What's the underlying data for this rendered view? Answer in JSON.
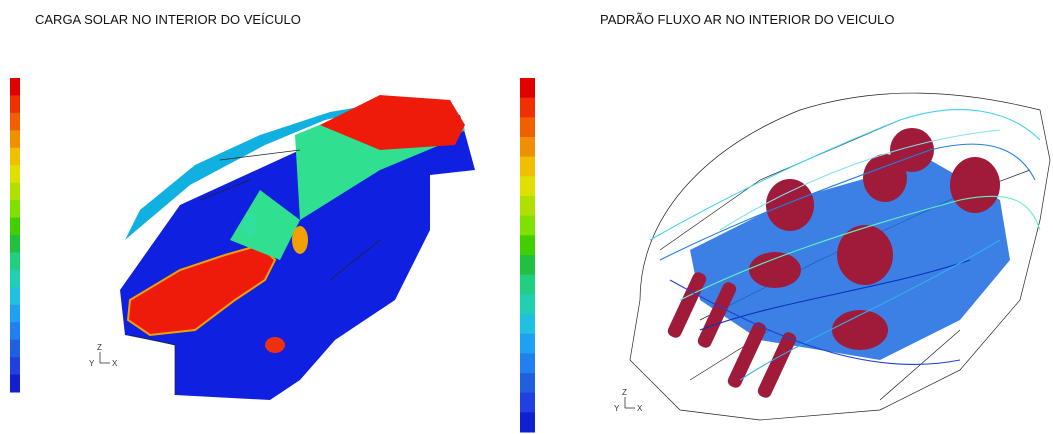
{
  "panels": [
    {
      "title": "CARGA SOLAR NO INTERIOR DO VEÍCULO",
      "axes": {
        "y": "Y",
        "z": "Z",
        "x": "X"
      }
    },
    {
      "title": "PADRÃO FLUXO AR NO INTERIOR DO VEICULO",
      "axes": {
        "y": "Y",
        "z": "Z",
        "x": "X"
      }
    }
  ]
}
